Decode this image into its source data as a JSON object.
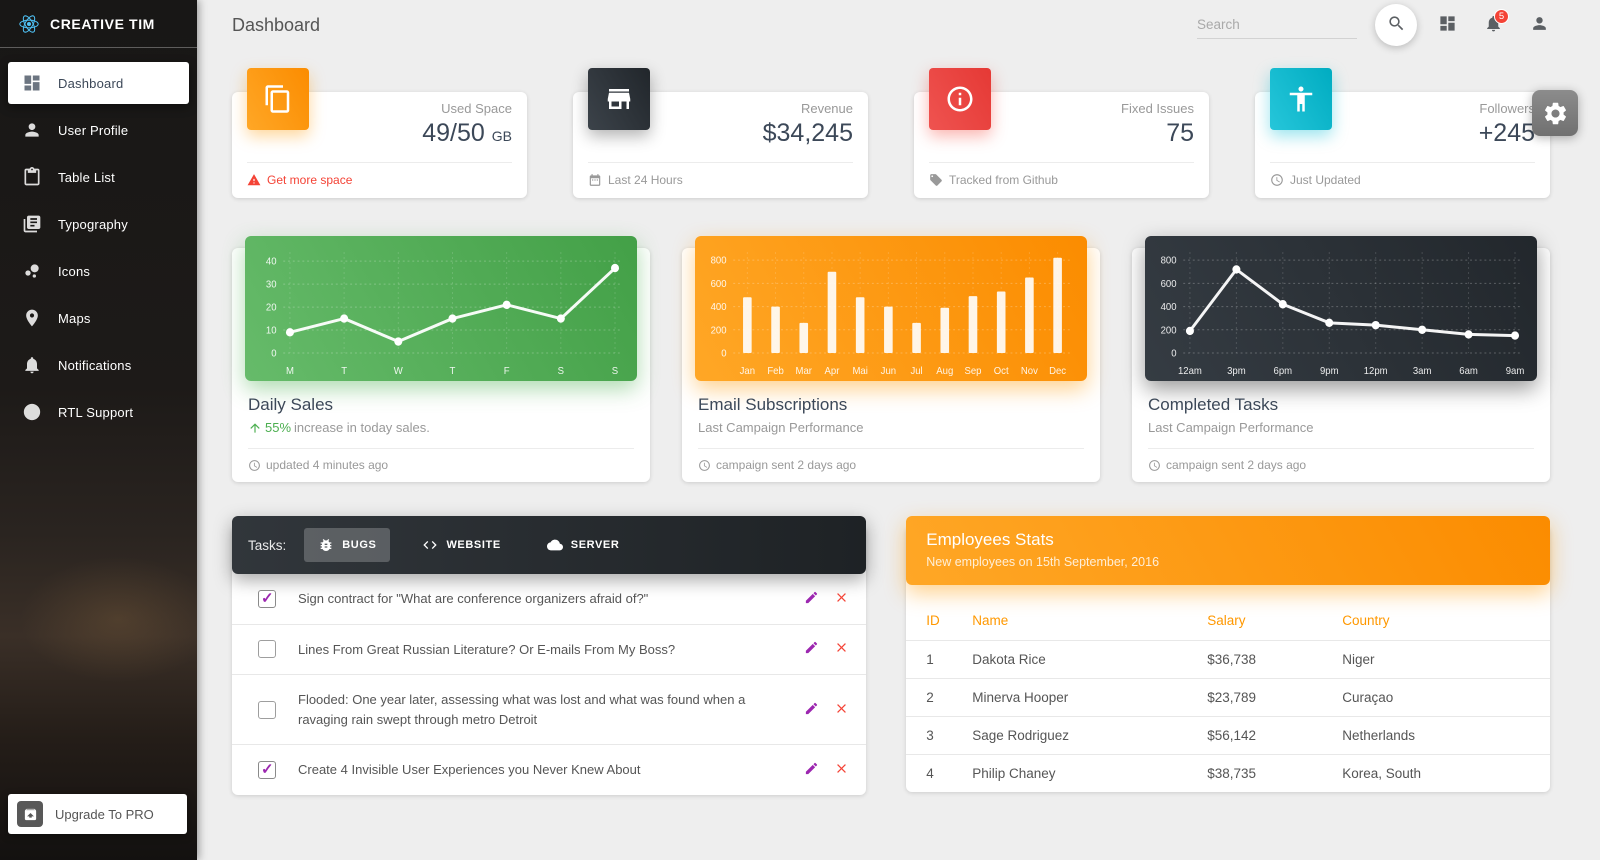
{
  "sidebar": {
    "brand": "CREATIVE TIM",
    "items": [
      {
        "label": "Dashboard",
        "icon": "dashboard-icon",
        "active": true
      },
      {
        "label": "User Profile",
        "icon": "person-icon",
        "active": false
      },
      {
        "label": "Table List",
        "icon": "clipboard-icon",
        "active": false
      },
      {
        "label": "Typography",
        "icon": "library-icon",
        "active": false
      },
      {
        "label": "Icons",
        "icon": "bubble-chart-icon",
        "active": false
      },
      {
        "label": "Maps",
        "icon": "map-pin-icon",
        "active": false
      },
      {
        "label": "Notifications",
        "icon": "bell-icon",
        "active": false
      },
      {
        "label": "RTL Support",
        "icon": "globe-icon",
        "active": false
      }
    ],
    "upgrade_label": "Upgrade To PRO"
  },
  "topbar": {
    "title": "Dashboard",
    "search_placeholder": "Search",
    "notification_count": "5"
  },
  "stat_cards": [
    {
      "icon": "copy-icon",
      "icon_color": "#fb8c00",
      "label": "Used Space",
      "value": "49/50",
      "unit": "GB",
      "footer": "Get more space",
      "footer_icon": "warning-icon",
      "footer_color": "#f44336"
    },
    {
      "icon": "store-icon",
      "icon_color": "#21262b",
      "label": "Revenue",
      "value": "$34,245",
      "unit": "",
      "footer": "Last 24 Hours",
      "footer_icon": "calendar-icon",
      "footer_color": "#999999"
    },
    {
      "icon": "info-icon",
      "icon_color": "#e53935",
      "label": "Fixed Issues",
      "value": "75",
      "unit": "",
      "footer": "Tracked from Github",
      "footer_icon": "tag-icon",
      "footer_color": "#999999"
    },
    {
      "icon": "accessibility-icon",
      "icon_color": "#00acc1",
      "label": "Followers",
      "value": "+245",
      "unit": "",
      "footer": "Just Updated",
      "footer_icon": "update-icon",
      "footer_color": "#999999"
    }
  ],
  "chart_data": [
    {
      "type": "line",
      "title": "Daily Sales",
      "subtitle_highlight": "55%",
      "subtitle_rest": " increase in today sales.",
      "footer": "updated 4 minutes ago",
      "categories": [
        "M",
        "T",
        "W",
        "T",
        "F",
        "S",
        "S"
      ],
      "values": [
        9,
        15,
        5,
        15,
        21,
        15,
        37
      ],
      "yticks": [
        0,
        10,
        20,
        30,
        40
      ],
      "ylim": [
        0,
        44
      ],
      "xlabel": "",
      "ylabel": "",
      "grid": true,
      "legend_position": "none",
      "panel": "green"
    },
    {
      "type": "bar",
      "title": "Email Subscriptions",
      "subtitle": "Last Campaign Performance",
      "footer": "campaign sent 2 days ago",
      "categories": [
        "Jan",
        "Feb",
        "Mar",
        "Apr",
        "Mai",
        "Jun",
        "Jul",
        "Aug",
        "Sep",
        "Oct",
        "Nov",
        "Dec"
      ],
      "values": [
        480,
        400,
        260,
        700,
        480,
        400,
        260,
        390,
        490,
        530,
        650,
        820
      ],
      "yticks": [
        0,
        200,
        400,
        600,
        800
      ],
      "ylim": [
        0,
        870
      ],
      "xlabel": "",
      "ylabel": "",
      "grid": true,
      "legend_position": "none",
      "panel": "orange"
    },
    {
      "type": "line",
      "title": "Completed Tasks",
      "subtitle": "Last Campaign Performance",
      "footer": "campaign sent 2 days ago",
      "categories": [
        "12am",
        "3pm",
        "6pm",
        "9pm",
        "12pm",
        "3am",
        "6am",
        "9am"
      ],
      "values": [
        190,
        720,
        420,
        260,
        240,
        200,
        160,
        150
      ],
      "yticks": [
        0,
        200,
        400,
        600,
        800
      ],
      "ylim": [
        0,
        870
      ],
      "xlabel": "",
      "ylabel": "",
      "grid": true,
      "legend_position": "none",
      "panel": "dark"
    }
  ],
  "tasks": {
    "label": "Tasks:",
    "tabs": [
      {
        "label": "BUGS",
        "icon": "bug-icon",
        "active": true
      },
      {
        "label": "WEBSITE",
        "icon": "code-icon",
        "active": false
      },
      {
        "label": "SERVER",
        "icon": "cloud-icon",
        "active": false
      }
    ],
    "items": [
      {
        "text": "Sign contract for \"What are conference organizers afraid of?\"",
        "checked": true
      },
      {
        "text": "Lines From Great Russian Literature? Or E-mails From My Boss?",
        "checked": false
      },
      {
        "text": "Flooded: One year later, assessing what was lost and what was found when a ravaging rain swept through metro Detroit",
        "checked": false
      },
      {
        "text": "Create 4 Invisible User Experiences you Never Knew About",
        "checked": true
      }
    ]
  },
  "employees": {
    "title": "Employees Stats",
    "subtitle": "New employees on 15th September, 2016",
    "columns": [
      "ID",
      "Name",
      "Salary",
      "Country"
    ],
    "rows": [
      [
        "1",
        "Dakota Rice",
        "$36,738",
        "Niger"
      ],
      [
        "2",
        "Minerva Hooper",
        "$23,789",
        "Curaçao"
      ],
      [
        "3",
        "Sage Rodriguez",
        "$56,142",
        "Netherlands"
      ],
      [
        "4",
        "Philip Chaney",
        "$38,735",
        "Korea, South"
      ]
    ]
  },
  "colors": {
    "accent_orange": "#ff9800",
    "accent_green": "#4caf50",
    "accent_red": "#f44336",
    "accent_cyan": "#00bcd4",
    "accent_purple": "#9c27b0",
    "brand_blue": "#4fc3f7"
  }
}
